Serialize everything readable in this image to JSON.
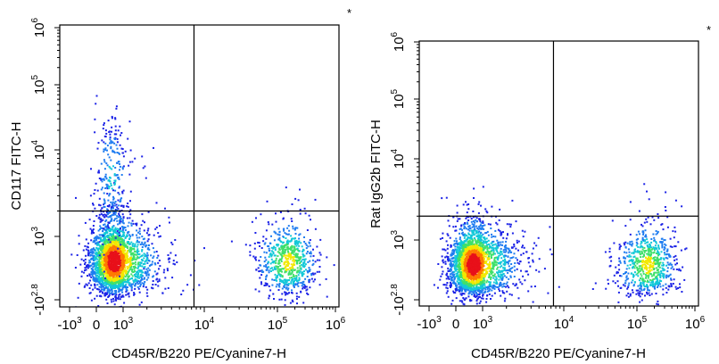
{
  "chart_data": [
    {
      "type": "scatter",
      "style": "flow-cytometry pseudocolor density dot plot",
      "xlabel": "CD45R/B220 PE/Cyanine7-H",
      "ylabel": "CD117 FITC-H",
      "corner_mark": "*",
      "xaxis": {
        "scale": "biexponential",
        "ticks": [
          {
            "base": "-10",
            "exp": "3",
            "at": -1000
          },
          {
            "base": "0",
            "exp": "",
            "at": 0
          },
          {
            "base": "10",
            "exp": "3",
            "at": 1000
          },
          {
            "base": "10",
            "exp": "4",
            "at": 10000
          },
          {
            "base": "10",
            "exp": "5",
            "at": 100000
          },
          {
            "base": "10",
            "exp": "6",
            "at": 1000000
          }
        ]
      },
      "yaxis": {
        "scale": "biexponential",
        "ticks": [
          {
            "base": "-10",
            "exp": "2.8",
            "at": -631
          },
          {
            "base": "10",
            "exp": "3",
            "at": 1000
          },
          {
            "base": "10",
            "exp": "4",
            "at": 10000
          },
          {
            "base": "10",
            "exp": "5",
            "at": 100000
          },
          {
            "base": "10",
            "exp": "6",
            "at": 1000000
          }
        ]
      },
      "quadrant_gate": {
        "x": 7500,
        "y": 2000
      },
      "populations": [
        {
          "name": "CD45R/B220- CD117-",
          "center_x": 500,
          "center_y": 300,
          "relative_density": "high"
        },
        {
          "name": "CD45R/B220- CD117+",
          "center_x": 400,
          "center_y": 5000,
          "relative_density": "low"
        },
        {
          "name": "CD45R/B220+ CD117-",
          "center_x": 150000,
          "center_y": 300,
          "relative_density": "medium"
        }
      ]
    },
    {
      "type": "scatter",
      "style": "flow-cytometry pseudocolor density dot plot",
      "xlabel": "CD45R/B220 PE/Cyanine7-H",
      "ylabel": "Rat IgG2b FITC-H",
      "corner_mark": "*",
      "xaxis": {
        "scale": "biexponential",
        "ticks": [
          {
            "base": "-10",
            "exp": "3",
            "at": -1000
          },
          {
            "base": "0",
            "exp": "",
            "at": 0
          },
          {
            "base": "10",
            "exp": "3",
            "at": 1000
          },
          {
            "base": "10",
            "exp": "4",
            "at": 10000
          },
          {
            "base": "10",
            "exp": "5",
            "at": 100000
          },
          {
            "base": "10",
            "exp": "6",
            "at": 1000000
          }
        ]
      },
      "yaxis": {
        "scale": "biexponential",
        "ticks": [
          {
            "base": "-10",
            "exp": "2.8",
            "at": -631
          },
          {
            "base": "10",
            "exp": "3",
            "at": 1000
          },
          {
            "base": "10",
            "exp": "4",
            "at": 10000
          },
          {
            "base": "10",
            "exp": "5",
            "at": 100000
          },
          {
            "base": "10",
            "exp": "6",
            "at": 1000000
          }
        ]
      },
      "quadrant_gate": {
        "x": 7500,
        "y": 2000
      },
      "populations": [
        {
          "name": "CD45R/B220- isotype-",
          "center_x": 500,
          "center_y": 300,
          "relative_density": "high"
        },
        {
          "name": "CD45R/B220+ isotype-",
          "center_x": 150000,
          "center_y": 300,
          "relative_density": "medium"
        }
      ]
    }
  ]
}
